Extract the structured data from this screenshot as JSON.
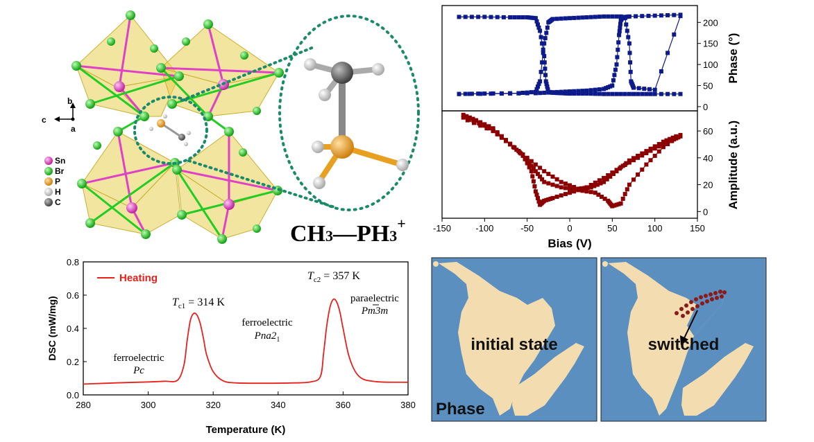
{
  "crystal": {
    "legend": [
      {
        "label": "Sn",
        "color": "#e040c8"
      },
      {
        "label": "Br",
        "color": "#22dd22"
      },
      {
        "label": "P",
        "color": "#f0a020"
      },
      {
        "label": "H",
        "color": "#d8d8d8"
      },
      {
        "label": "C",
        "color": "#707070"
      }
    ],
    "axes": {
      "b": "b",
      "c": "c",
      "a": "a"
    },
    "formula": {
      "ch3": "CH",
      "sub3a": "3",
      "dash": "—PH",
      "sub3b": "3",
      "sup": "+"
    }
  },
  "afm": {
    "left_label": "initial state",
    "right_label": "switched",
    "corner_label": "Phase",
    "colors": {
      "background": "#5a8fc0",
      "domain": "#f2dcb0",
      "marker": "#8b1a1a"
    }
  },
  "chart_data": [
    {
      "type": "line",
      "panel": "piezoresponse-phase",
      "xlabel": "Bias (V)",
      "ylabel": "Phase (°)",
      "xlim": [
        -150,
        150
      ],
      "ylim": [
        -10,
        240
      ],
      "xticks": [
        -150,
        -100,
        -50,
        0,
        50,
        100,
        150
      ],
      "yticks": [
        0,
        50,
        100,
        150,
        200
      ],
      "color": "#0d1a8a",
      "series": [
        {
          "x": [
            -130,
            -100,
            -70,
            -50,
            -40,
            -35,
            -30,
            -28,
            -25,
            -20,
            -10,
            0,
            20,
            40,
            60,
            80,
            100,
            130
          ],
          "y": [
            213,
            213,
            212,
            212,
            210,
            180,
            120,
            60,
            35,
            33,
            32,
            31,
            31,
            30,
            30,
            30,
            30,
            30
          ]
        },
        {
          "x": [
            -130,
            -100,
            -60,
            -40,
            -35,
            -30,
            -25,
            -20,
            0,
            20,
            40,
            60,
            65,
            70,
            72,
            75,
            100,
            130
          ],
          "y": [
            30,
            31,
            32,
            35,
            60,
            150,
            200,
            208,
            210,
            212,
            214,
            214,
            210,
            150,
            60,
            45,
            40,
            215
          ]
        },
        {
          "x": [
            -130,
            -80,
            -40,
            -20,
            0,
            20,
            40,
            50,
            55,
            58,
            60,
            62,
            70,
            100,
            130
          ],
          "y": [
            30,
            31,
            32,
            34,
            36,
            38,
            42,
            50,
            100,
            170,
            205,
            212,
            214,
            216,
            218
          ]
        }
      ]
    },
    {
      "type": "line",
      "panel": "piezoresponse-amplitude",
      "xlabel": "Bias (V)",
      "ylabel": "Amplitude (a.u.)",
      "xlim": [
        -150,
        150
      ],
      "ylim": [
        -5,
        75
      ],
      "xticks": [
        -150,
        -100,
        -50,
        0,
        50,
        100,
        150
      ],
      "yticks": [
        0,
        20,
        40,
        60
      ],
      "color": "#8b0000",
      "series": [
        {
          "x": [
            -125,
            -110,
            -90,
            -70,
            -55,
            -45,
            -40,
            -35,
            -30,
            -20,
            0,
            20,
            40,
            60,
            80,
            100,
            120,
            130
          ],
          "y": [
            72,
            68,
            62,
            50,
            42,
            30,
            15,
            5,
            8,
            10,
            14,
            18,
            25,
            33,
            40,
            47,
            53,
            56
          ]
        },
        {
          "x": [
            -125,
            -100,
            -80,
            -60,
            -50,
            -40,
            -30,
            -10,
            10,
            30,
            45,
            50,
            60,
            70,
            90,
            110,
            130
          ],
          "y": [
            70,
            64,
            56,
            45,
            38,
            30,
            22,
            18,
            16,
            14,
            8,
            4,
            6,
            20,
            35,
            48,
            57
          ]
        },
        {
          "x": [
            -120,
            -90,
            -70,
            -50,
            -30,
            -10,
            10,
            25,
            40,
            55,
            70,
            90,
            110,
            125
          ],
          "y": [
            68,
            60,
            50,
            40,
            30,
            22,
            17,
            18,
            22,
            30,
            38,
            45,
            52,
            56
          ]
        }
      ]
    },
    {
      "type": "line",
      "panel": "dsc",
      "xlabel": "Temperature (K)",
      "ylabel": "DSC (mW/mg)",
      "xlim": [
        280,
        380
      ],
      "ylim": [
        0.0,
        0.8
      ],
      "xticks": [
        280,
        300,
        320,
        340,
        360,
        380
      ],
      "yticks": [
        0.0,
        0.2,
        0.4,
        0.6,
        0.8
      ],
      "ytick_labels": [
        "0.0",
        "0.2",
        "0.4",
        "0.6",
        "0.8"
      ],
      "legend": [
        {
          "name": "Heating",
          "color": "#e8201a"
        }
      ],
      "series": [
        {
          "name": "Heating",
          "x": [
            280,
            290,
            300,
            305,
            309,
            311,
            312,
            313,
            314,
            315,
            316,
            317,
            318,
            320,
            323,
            327,
            335,
            345,
            350,
            353,
            354,
            355,
            356,
            357,
            358,
            359,
            360,
            362,
            365,
            370,
            380
          ],
          "y": [
            0.065,
            0.072,
            0.078,
            0.082,
            0.088,
            0.18,
            0.33,
            0.45,
            0.49,
            0.48,
            0.43,
            0.34,
            0.24,
            0.14,
            0.085,
            0.072,
            0.07,
            0.072,
            0.078,
            0.11,
            0.25,
            0.42,
            0.53,
            0.575,
            0.56,
            0.5,
            0.4,
            0.22,
            0.11,
            0.08,
            0.076
          ]
        }
      ],
      "annotations": {
        "tc1": "T",
        "tc1_sub": "c1",
        "tc1_val": " = 314 K",
        "tc2": "T",
        "tc2_sub": "c2",
        "tc2_val": " = 357 K",
        "phase1": "ferroelectric",
        "phase1_group": "Pc",
        "phase2": "ferroelectric",
        "phase2_group": "Pna2",
        "phase2_sub": "1",
        "phase3": "paraelectric",
        "phase3_group": "Pm3m"
      }
    }
  ]
}
